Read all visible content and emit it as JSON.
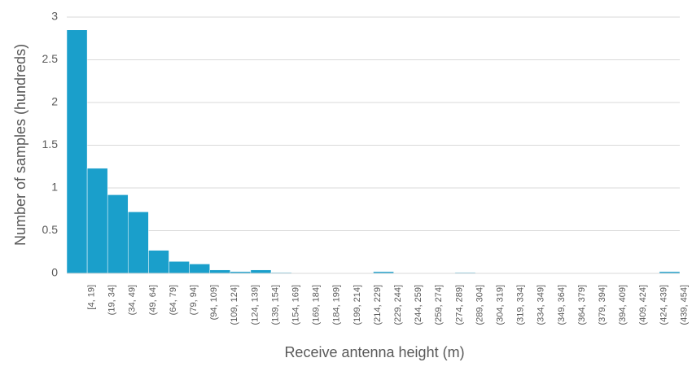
{
  "chart_data": {
    "type": "bar",
    "x_label": "Receive antenna height (m)",
    "y_label": "Number of samples (hundreds)",
    "categories": [
      "[4, 19]",
      "(19, 34]",
      "(34, 49]",
      "(49, 64]",
      "(64, 79]",
      "(79, 94]",
      "(94, 109]",
      "(109, 124]",
      "(124, 139]",
      "(139, 154]",
      "(154, 169]",
      "(169, 184]",
      "(184, 199]",
      "(199, 214]",
      "(214, 229]",
      "(229, 244]",
      "(244, 259]",
      "(259, 274]",
      "(274, 289]",
      "(289, 304]",
      "(304, 319]",
      "(319, 334]",
      "(334, 349]",
      "(349, 364]",
      "(364, 379]",
      "(379, 394]",
      "(394, 409]",
      "(409, 424]",
      "(424, 439]",
      "(439, 454]"
    ],
    "values": [
      2.85,
      1.23,
      0.92,
      0.72,
      0.27,
      0.14,
      0.11,
      0.04,
      0.02,
      0.04,
      0.01,
      0,
      0,
      0,
      0,
      0.02,
      0,
      0,
      0,
      0.01,
      0,
      0,
      0,
      0,
      0,
      0,
      0,
      0,
      0,
      0.02
    ],
    "color": "#1a9fcb",
    "ylim": [
      0,
      3
    ],
    "yticks": [
      0,
      0.5,
      1,
      1.5,
      2,
      2.5,
      3
    ],
    "grid": true
  }
}
